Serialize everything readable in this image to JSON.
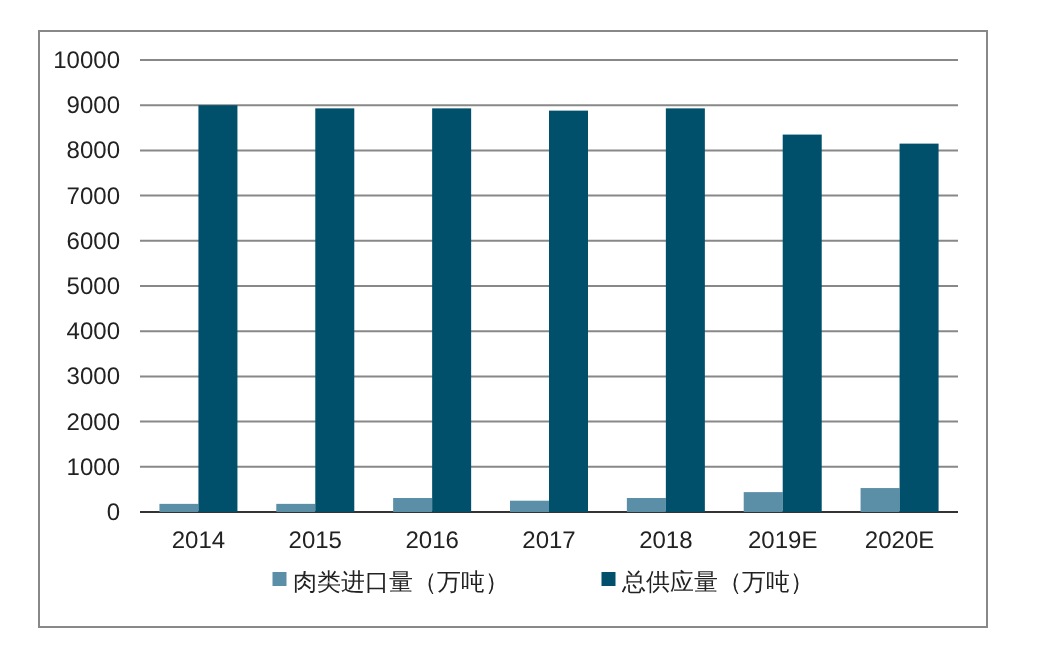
{
  "chart_data": {
    "type": "bar",
    "categories": [
      "2014",
      "2015",
      "2016",
      "2017",
      "2018",
      "2019E",
      "2020E"
    ],
    "series": [
      {
        "name": "肉类进口量（万吨）",
        "color": "#5b8fa8",
        "values": [
          180,
          180,
          310,
          250,
          310,
          440,
          530
        ]
      },
      {
        "name": "总供应量（万吨）",
        "color": "#004f6b",
        "values": [
          9000,
          8930,
          8930,
          8880,
          8930,
          8350,
          8150
        ]
      }
    ],
    "ylim": [
      0,
      10000
    ],
    "yticks": [
      0,
      1000,
      2000,
      3000,
      4000,
      5000,
      6000,
      7000,
      8000,
      9000,
      10000
    ],
    "grid": "y",
    "legend": "bottom"
  }
}
